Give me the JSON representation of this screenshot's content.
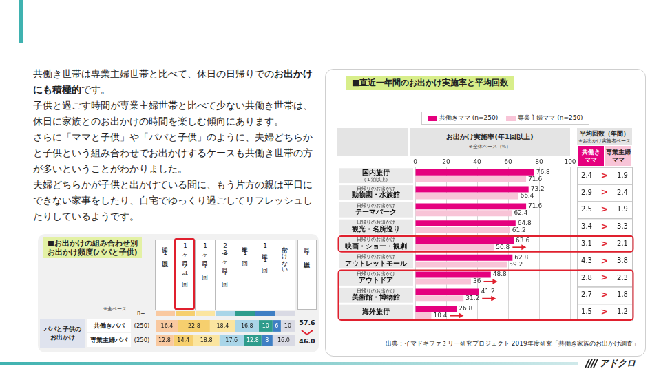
{
  "slide": {
    "paragraphs": [
      [
        {
          "text": "共働き世帯は専業主婦世帯と比べて、休日の日帰りでの"
        },
        {
          "text": "お出かけにも積極的",
          "bold": true
        },
        {
          "text": "です。"
        }
      ],
      [
        {
          "text": "子供と過ごす時間が専業主婦世帯と比べて少ない共働き世帯は、休日に家族とのお出かけの時間を楽しむ傾向にあります。"
        }
      ],
      [
        {
          "text": "さらに「ママと子供」や「パパと子供」のように、夫婦どちらかと子供という組み合わせでお出かけするケースも共働き世帯の方が多いということがわかりました。"
        }
      ],
      [
        {
          "text": "夫婦どちらかが子供と出かけている間に、もう片方の親は平日にできない家事をしたり、自宅でゆっくり過ごしてリフレッシュしたりしているようです。"
        }
      ]
    ],
    "logo": "アドクロ"
  },
  "chart_data": [
    {
      "type": "bar",
      "orientation": "horizontal",
      "title": "■直近一年間のお出かけ実施率と平均回数",
      "subtitle": "お出かけ実施率(年1回以上)",
      "note": "※全体ベース（%）",
      "categories": [
        "国内旅行",
        "動物園・水族館",
        "テーマパーク",
        "観光・名所巡り",
        "映画・ショー・観劇",
        "アウトレットモール",
        "アウトドア",
        "美術館・博物館",
        "海外旅行"
      ],
      "category_notes": [
        {
          "text": "（１泊以上）",
          "position": "below"
        },
        {
          "text": "日帰りのお出かけ",
          "position": "above"
        },
        {
          "text": "日帰りのお出かけ",
          "position": "above"
        },
        {
          "text": "日帰りのお出かけ",
          "position": "above"
        },
        {
          "text": "日帰りのお出かけ",
          "position": "above"
        },
        {
          "text": "日帰りのお出かけ",
          "position": "above"
        },
        {
          "text": "日帰りのお出かけ",
          "position": "above"
        },
        {
          "text": "日帰りのお出かけ",
          "position": "above"
        },
        null
      ],
      "series": [
        {
          "name": "共働きママ (n=250)",
          "color": "#e5007e",
          "values": [
            76.8,
            73.2,
            71.6,
            64.8,
            63.6,
            62.8,
            48.8,
            41.2,
            26.8
          ]
        },
        {
          "name": "専業主婦ママ (n=250)",
          "color": "#f8c4d7",
          "values": [
            71.6,
            66.4,
            62.4,
            61.2,
            50.8,
            59.2,
            36,
            31.2,
            10.4
          ]
        }
      ],
      "xlim": [
        0,
        100
      ],
      "xticks": [
        0,
        20,
        40,
        60,
        80,
        100
      ],
      "grid": true,
      "legend": "top",
      "data_labels": true,
      "average": {
        "title": "平均回数（年間）",
        "note": "※お出かけ実施者ベース",
        "columns": [
          "共働きママ",
          "専業主婦ママ"
        ],
        "comparison": ">",
        "values": [
          [
            2.4,
            1.9
          ],
          [
            2.9,
            2.4
          ],
          [
            2.5,
            1.9
          ],
          [
            3.4,
            3.3
          ],
          [
            3.1,
            2.1
          ],
          [
            4.3,
            3.8
          ],
          [
            2.8,
            2.3
          ],
          [
            2.7,
            1.8
          ],
          [
            1.5,
            1.2
          ]
        ]
      },
      "highlights": [
        [
          "映画・ショー・観劇"
        ],
        [
          "アウトドア",
          "美術館・博物館",
          "海外旅行"
        ]
      ],
      "source": "出典：イマドキファミリー研究プロジェクト 2019年度研究「共働き家族のお出かけ調査」"
    },
    {
      "type": "bar",
      "orientation": "horizontal",
      "stacked": true,
      "title": "■お出かけの組み合わせ別 お出かけ頻度(パパと子供)",
      "note": "※全ベース",
      "n_label": "n=",
      "group": "パパと子供のお出かけ",
      "categories": [
        "共働きパパ",
        "専業主婦パパ"
      ],
      "n_labels": [
        "(250)",
        "(250)"
      ],
      "series": [
        {
          "name": "週に1回以上",
          "color": "#f9c9a0",
          "values": [
            16.4,
            12.8
          ]
        },
        {
          "name": "1ヶ月に2〜3回",
          "color": "#f6cf6e",
          "values": [
            22.8,
            14.4
          ]
        },
        {
          "name": "1ヶ月に1回",
          "color": "#fbe5a0",
          "values": [
            18.4,
            18.8
          ]
        },
        {
          "name": "2〜3ヶ月に1回",
          "color": "#a9d5e8",
          "values": [
            16.8,
            17.6
          ]
        },
        {
          "name": "半年に1回",
          "color": "#2e9c8c",
          "values": [
            10,
            12.8
          ]
        },
        {
          "name": "1年に1回",
          "color": "#3f7fc4",
          "values": [
            6,
            8
          ]
        },
        {
          "name": "出かけない",
          "color": "#d9dae4",
          "values": [
            10,
            16
          ],
          "value_labels": [
            "10",
            "16.0"
          ]
        }
      ],
      "xlim": [
        0,
        100.4
      ],
      "tick_labels": false,
      "grid": false,
      "data_labels": true,
      "total": {
        "name": "月に1回以上計",
        "values": [
          57.6,
          46
        ],
        "value_labels": [
          "57.6",
          "46.0"
        ]
      },
      "highlight": "1ヶ月に2〜3回"
    }
  ]
}
